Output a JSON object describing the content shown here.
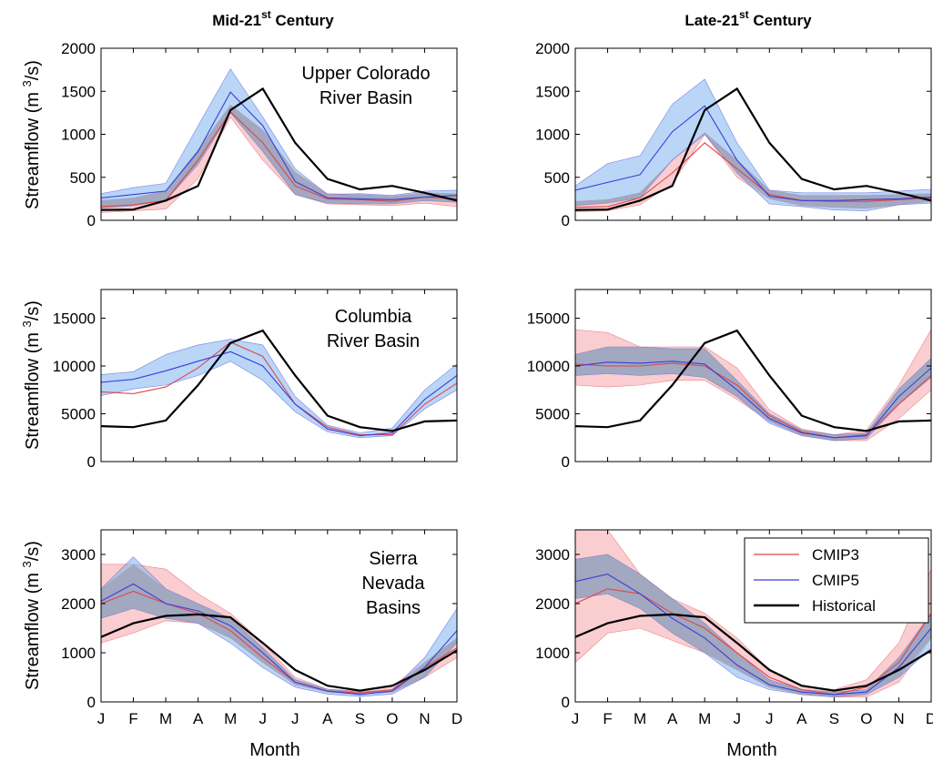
{
  "figure": {
    "columns": [
      {
        "title_main": "Mid-21",
        "title_sup": "st",
        "title_rest": " Century"
      },
      {
        "title_main": "Late-21",
        "title_sup": "st",
        "title_rest": " Century"
      }
    ],
    "ylabel_main": "Streamflow (m ",
    "ylabel_sup": "3",
    "ylabel_rest": "/s)",
    "xlabel": "Month",
    "months": [
      "J",
      "F",
      "M",
      "A",
      "M",
      "J",
      "J",
      "A",
      "S",
      "O",
      "N",
      "D"
    ],
    "legend": {
      "entries": [
        {
          "label": "CMIP3",
          "color": "#e0454a"
        },
        {
          "label": "CMIP5",
          "color": "#3c3cdc"
        },
        {
          "label": "Historical",
          "color": "#000000"
        }
      ]
    },
    "colors": {
      "cmip3_line": "#e0454a",
      "cmip3_band": "#f5a6ab",
      "cmip5_line": "#3c3cdc",
      "cmip5_band": "#7fb4ef",
      "overlap_band": "#9aa0b3",
      "historical": "#000000"
    }
  },
  "chart_data": [
    {
      "type": "line",
      "row": 0,
      "col": 0,
      "annotation": [
        "Upper Colorado",
        "River Basin"
      ],
      "ylim": [
        0,
        2000
      ],
      "yticks": [
        0,
        500,
        1000,
        1500,
        2000
      ],
      "x": [
        "J",
        "F",
        "M",
        "A",
        "M",
        "J",
        "J",
        "A",
        "S",
        "O",
        "N",
        "D"
      ],
      "series": [
        {
          "name": "Historical",
          "values": [
            120,
            125,
            230,
            400,
            1280,
            1530,
            900,
            480,
            360,
            400,
            320,
            230
          ]
        },
        {
          "name": "CMIP3",
          "values": [
            160,
            180,
            230,
            700,
            1260,
            900,
            400,
            250,
            240,
            220,
            270,
            250
          ],
          "lower": [
            90,
            110,
            130,
            480,
            1200,
            700,
            300,
            190,
            180,
            170,
            200,
            160
          ],
          "upper": [
            230,
            260,
            340,
            820,
            1340,
            1050,
            560,
            310,
            300,
            280,
            320,
            310
          ]
        },
        {
          "name": "CMIP5",
          "values": [
            260,
            300,
            340,
            800,
            1490,
            1100,
            450,
            260,
            250,
            240,
            270,
            290
          ],
          "lower": [
            140,
            170,
            230,
            650,
            1250,
            800,
            300,
            200,
            190,
            190,
            230,
            210
          ],
          "upper": [
            310,
            380,
            430,
            1100,
            1760,
            1200,
            600,
            300,
            310,
            290,
            340,
            350
          ]
        }
      ]
    },
    {
      "type": "line",
      "row": 0,
      "col": 1,
      "annotation": [],
      "ylim": [
        0,
        2000
      ],
      "yticks": [
        0,
        500,
        1000,
        1500,
        2000
      ],
      "x": [
        "J",
        "F",
        "M",
        "A",
        "M",
        "J",
        "J",
        "A",
        "S",
        "O",
        "N",
        "D"
      ],
      "series": [
        {
          "name": "Historical",
          "values": [
            120,
            125,
            230,
            400,
            1280,
            1530,
            900,
            480,
            360,
            400,
            320,
            230
          ]
        },
        {
          "name": "CMIP3",
          "values": [
            150,
            160,
            260,
            550,
            900,
            600,
            300,
            230,
            220,
            220,
            240,
            260
          ],
          "lower": [
            100,
            110,
            180,
            420,
            1000,
            500,
            250,
            170,
            150,
            140,
            180,
            220
          ],
          "upper": [
            220,
            240,
            320,
            700,
            1020,
            700,
            350,
            290,
            290,
            290,
            300,
            310
          ]
        },
        {
          "name": "CMIP5",
          "values": [
            350,
            440,
            530,
            1030,
            1330,
            700,
            280,
            230,
            230,
            240,
            250,
            270
          ],
          "lower": [
            170,
            200,
            260,
            700,
            1000,
            550,
            190,
            160,
            120,
            110,
            180,
            200
          ],
          "upper": [
            400,
            660,
            750,
            1350,
            1640,
            900,
            350,
            320,
            320,
            320,
            340,
            360
          ]
        }
      ]
    },
    {
      "type": "line",
      "row": 1,
      "col": 0,
      "annotation": [
        "Columbia",
        "River Basin"
      ],
      "ylim": [
        0,
        18000
      ],
      "yticks": [
        0,
        5000,
        10000,
        15000
      ],
      "x": [
        "J",
        "F",
        "M",
        "A",
        "M",
        "J",
        "J",
        "A",
        "S",
        "O",
        "N",
        "D"
      ],
      "series": [
        {
          "name": "Historical",
          "values": [
            3700,
            3600,
            4300,
            8000,
            12400,
            13700,
            9000,
            4800,
            3600,
            3200,
            4200,
            4300
          ]
        },
        {
          "name": "CMIP3",
          "values": [
            7300,
            7100,
            7800,
            9800,
            12500,
            11000,
            6000,
            3600,
            2800,
            2800,
            6000,
            8200
          ]
        },
        {
          "name": "CMIP5",
          "values": [
            8300,
            8600,
            9500,
            10500,
            11500,
            10000,
            6000,
            3400,
            2700,
            3000,
            6500,
            9000
          ],
          "lower": [
            6900,
            7600,
            8000,
            9000,
            10500,
            8500,
            5200,
            3100,
            2500,
            2700,
            5500,
            7500
          ],
          "upper": [
            9100,
            9400,
            11200,
            12200,
            12800,
            12200,
            6800,
            3800,
            3000,
            3500,
            7500,
            10200
          ]
        }
      ]
    },
    {
      "type": "line",
      "row": 1,
      "col": 1,
      "annotation": [],
      "ylim": [
        0,
        18000
      ],
      "yticks": [
        0,
        5000,
        10000,
        15000
      ],
      "x": [
        "J",
        "F",
        "M",
        "A",
        "M",
        "J",
        "J",
        "A",
        "S",
        "O",
        "N",
        "D"
      ],
      "series": [
        {
          "name": "Historical",
          "values": [
            3700,
            3600,
            4300,
            8000,
            12400,
            13700,
            9000,
            4800,
            3600,
            3200,
            4200,
            4300
          ]
        },
        {
          "name": "CMIP3",
          "values": [
            10200,
            10000,
            10000,
            10300,
            10000,
            8000,
            4800,
            3100,
            2500,
            2800,
            6000,
            9000
          ],
          "lower": [
            8000,
            7800,
            8000,
            8500,
            8500,
            6500,
            4200,
            2700,
            2200,
            2200,
            4500,
            7500
          ],
          "upper": [
            13800,
            13500,
            12000,
            12000,
            12000,
            9800,
            5400,
            3400,
            2800,
            3300,
            8000,
            13800
          ]
        },
        {
          "name": "CMIP5",
          "values": [
            10000,
            10400,
            10300,
            10500,
            10200,
            7500,
            4500,
            3000,
            2500,
            2700,
            6800,
            9800
          ],
          "lower": [
            9000,
            9200,
            9000,
            9200,
            8800,
            6800,
            4000,
            2700,
            2200,
            2400,
            6000,
            8800
          ],
          "upper": [
            11200,
            12000,
            12000,
            11800,
            11800,
            8500,
            5000,
            3300,
            2800,
            3000,
            7600,
            10800
          ]
        }
      ]
    },
    {
      "type": "line",
      "row": 2,
      "col": 0,
      "annotation": [
        "Sierra",
        "Nevada",
        "Basins"
      ],
      "ylim": [
        0,
        3500
      ],
      "yticks": [
        0,
        1000,
        2000,
        3000
      ],
      "x": [
        "J",
        "F",
        "M",
        "A",
        "M",
        "J",
        "J",
        "A",
        "S",
        "O",
        "N",
        "D"
      ],
      "series": [
        {
          "name": "Historical",
          "values": [
            1320,
            1600,
            1750,
            1780,
            1720,
            1200,
            650,
            330,
            230,
            330,
            650,
            1050
          ]
        },
        {
          "name": "CMIP3",
          "values": [
            2000,
            2250,
            2000,
            1800,
            1450,
            900,
            400,
            220,
            180,
            250,
            700,
            1100
          ],
          "lower": [
            1200,
            1400,
            1650,
            1600,
            1300,
            800,
            350,
            200,
            160,
            200,
            500,
            900
          ],
          "upper": [
            2800,
            2800,
            2700,
            2200,
            1800,
            1200,
            500,
            260,
            220,
            320,
            800,
            1300
          ]
        },
        {
          "name": "CMIP5",
          "values": [
            2050,
            2400,
            2000,
            1850,
            1550,
            1000,
            400,
            220,
            150,
            220,
            700,
            1450
          ],
          "lower": [
            1700,
            1900,
            1700,
            1600,
            1200,
            700,
            300,
            160,
            110,
            160,
            500,
            1200
          ],
          "upper": [
            2300,
            2950,
            2300,
            2000,
            1700,
            1100,
            450,
            260,
            200,
            250,
            900,
            1900
          ]
        }
      ]
    },
    {
      "type": "line",
      "row": 2,
      "col": 1,
      "annotation": [],
      "ylim": [
        0,
        3500
      ],
      "yticks": [
        0,
        1000,
        2000,
        3000
      ],
      "x": [
        "J",
        "F",
        "M",
        "A",
        "M",
        "J",
        "J",
        "A",
        "S",
        "O",
        "N",
        "D"
      ],
      "series": [
        {
          "name": "Historical",
          "values": [
            1320,
            1600,
            1750,
            1780,
            1720,
            1200,
            650,
            330,
            230,
            330,
            650,
            1050
          ]
        },
        {
          "name": "CMIP3",
          "values": [
            2000,
            2300,
            2200,
            1800,
            1500,
            1000,
            500,
            250,
            150,
            300,
            800,
            1800
          ],
          "lower": [
            800,
            1400,
            1500,
            1250,
            1000,
            650,
            300,
            150,
            100,
            100,
            400,
            1300
          ],
          "upper": [
            3500,
            3500,
            2600,
            2100,
            1800,
            1300,
            650,
            330,
            250,
            450,
            1200,
            2700
          ]
        },
        {
          "name": "CMIP5",
          "values": [
            2450,
            2600,
            2200,
            1700,
            1300,
            750,
            350,
            200,
            150,
            200,
            700,
            1500
          ],
          "lower": [
            2100,
            2200,
            1900,
            1400,
            1000,
            500,
            250,
            150,
            100,
            150,
            500,
            1100
          ],
          "upper": [
            2900,
            3000,
            2600,
            2100,
            1600,
            1000,
            450,
            250,
            200,
            250,
            900,
            1800
          ]
        }
      ]
    }
  ]
}
